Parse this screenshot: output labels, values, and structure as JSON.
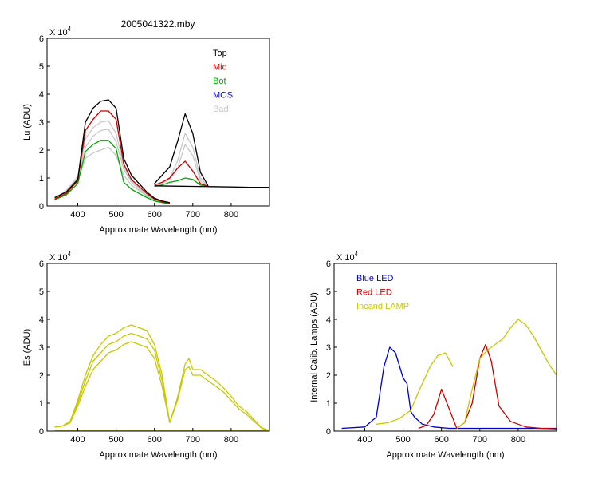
{
  "title": "2005041322.mby",
  "colors": {
    "top": "#000000",
    "mid": "#cc0000",
    "bot": "#00aa00",
    "mos": "#0000cc",
    "bad": "#c8c8c8",
    "es": "#c8c800",
    "blue_led": "#0000cc",
    "red_led": "#cc0000",
    "incand_lamp": "#c8c800"
  },
  "chart_data": [
    {
      "id": "lu",
      "type": "line",
      "xlabel": "Approximate Wavelength (nm)",
      "ylabel": "Lu (ADU)",
      "multiplier_label": "X 10",
      "multiplier_exp": "4",
      "xlim": [
        320,
        900
      ],
      "ylim": [
        0,
        6
      ],
      "xticks": [
        400,
        500,
        600,
        700,
        800
      ],
      "xtick_labels": [
        "400",
        "500",
        "600",
        "700",
        "800"
      ],
      "yticks": [
        0,
        1,
        2,
        3,
        4,
        5,
        6
      ],
      "ytick_labels": [
        "0",
        "1",
        "2",
        "3",
        "4",
        "5",
        "6"
      ],
      "legend": [
        {
          "label": "Top",
          "color": "#000000"
        },
        {
          "label": "Mid",
          "color": "#cc0000"
        },
        {
          "label": "Bot",
          "color": "#00aa00"
        },
        {
          "label": "MOS",
          "color": "#0000cc"
        },
        {
          "label": "Bad",
          "color": "#c8c8c8"
        }
      ],
      "series": [
        {
          "name": "Bad",
          "color": "#c8c8c8",
          "x": [
            340,
            370,
            400,
            420,
            440,
            460,
            480,
            500,
            520,
            540,
            560,
            580,
            600,
            620,
            640
          ],
          "y": [
            0.25,
            0.45,
            0.9,
            1.7,
            1.9,
            2.0,
            2.1,
            1.8,
            1.1,
            0.75,
            0.55,
            0.35,
            0.2,
            0.15,
            0.1
          ]
        },
        {
          "name": "Bad",
          "color": "#c8c8c8",
          "x": [
            340,
            370,
            400,
            420,
            440,
            460,
            480,
            500,
            520,
            540,
            560,
            580,
            600,
            620,
            640
          ],
          "y": [
            0.27,
            0.5,
            1.0,
            2.1,
            2.5,
            2.7,
            2.75,
            2.3,
            1.3,
            0.85,
            0.6,
            0.38,
            0.22,
            0.16,
            0.1
          ]
        },
        {
          "name": "Bad",
          "color": "#c8c8c8",
          "x": [
            340,
            370,
            400,
            420,
            440,
            460,
            480,
            500,
            520,
            540,
            560,
            580,
            600,
            620,
            640
          ],
          "y": [
            0.28,
            0.55,
            1.05,
            2.4,
            2.8,
            3.0,
            3.05,
            2.6,
            1.4,
            0.9,
            0.65,
            0.4,
            0.23,
            0.17,
            0.1
          ]
        },
        {
          "name": "Bad",
          "color": "#c8c8c8",
          "x": [
            600,
            620,
            640,
            660,
            680,
            700,
            720,
            740
          ],
          "y": [
            0.75,
            0.85,
            1.0,
            1.6,
            2.6,
            2.1,
            1.0,
            0.7
          ]
        },
        {
          "name": "Bad",
          "color": "#c8c8c8",
          "x": [
            600,
            620,
            640,
            660,
            680,
            700,
            720,
            740
          ],
          "y": [
            0.72,
            0.8,
            0.95,
            1.35,
            2.2,
            1.8,
            0.9,
            0.7
          ]
        },
        {
          "name": "Bot",
          "color": "#00aa00",
          "x": [
            340,
            370,
            400,
            420,
            440,
            460,
            480,
            500,
            520,
            540,
            560,
            580,
            600,
            620,
            640
          ],
          "y": [
            0.22,
            0.4,
            0.8,
            1.95,
            2.2,
            2.35,
            2.35,
            2.05,
            0.85,
            0.6,
            0.45,
            0.3,
            0.18,
            0.12,
            0.08
          ]
        },
        {
          "name": "Bot",
          "color": "#00aa00",
          "x": [
            600,
            620,
            640,
            660,
            680,
            700,
            720,
            740
          ],
          "y": [
            0.7,
            0.75,
            0.85,
            0.9,
            1.0,
            0.95,
            0.75,
            0.7
          ]
        },
        {
          "name": "Mid",
          "color": "#cc0000",
          "x": [
            340,
            370,
            400,
            420,
            440,
            460,
            480,
            500,
            520,
            540,
            560,
            580,
            600,
            620,
            640
          ],
          "y": [
            0.25,
            0.45,
            0.9,
            2.7,
            3.1,
            3.4,
            3.4,
            3.1,
            1.5,
            0.95,
            0.7,
            0.45,
            0.25,
            0.15,
            0.1
          ]
        },
        {
          "name": "Mid",
          "color": "#cc0000",
          "x": [
            600,
            620,
            640,
            660,
            680,
            700,
            720,
            740
          ],
          "y": [
            0.75,
            0.85,
            1.0,
            1.35,
            1.6,
            1.25,
            0.8,
            0.7
          ]
        },
        {
          "name": "Top",
          "color": "#000000",
          "x": [
            340,
            370,
            400,
            420,
            440,
            460,
            480,
            500,
            520,
            540,
            560,
            580,
            600,
            620,
            640
          ],
          "y": [
            0.3,
            0.5,
            0.95,
            3.0,
            3.5,
            3.75,
            3.8,
            3.5,
            1.7,
            1.1,
            0.8,
            0.5,
            0.28,
            0.18,
            0.12
          ]
        },
        {
          "name": "Top",
          "color": "#000000",
          "x": [
            600,
            620,
            640,
            660,
            680,
            700,
            720,
            740
          ],
          "y": [
            0.8,
            1.1,
            1.4,
            2.3,
            3.3,
            2.6,
            1.2,
            0.72
          ]
        },
        {
          "name": "Top",
          "color": "#000000",
          "x": [
            600,
            650,
            700,
            750,
            800,
            850,
            900
          ],
          "y": [
            0.72,
            0.71,
            0.7,
            0.69,
            0.68,
            0.67,
            0.67
          ]
        }
      ]
    },
    {
      "id": "es",
      "type": "line",
      "xlabel": "Approximate Wavelength (nm)",
      "ylabel": "Es (ADU)",
      "multiplier_label": "X 10",
      "multiplier_exp": "4",
      "xlim": [
        320,
        900
      ],
      "ylim": [
        0,
        6
      ],
      "xticks": [
        400,
        500,
        600,
        700,
        800
      ],
      "xtick_labels": [
        "400",
        "500",
        "600",
        "700",
        "800"
      ],
      "yticks": [
        0,
        1,
        2,
        3,
        4,
        5,
        6
      ],
      "ytick_labels": [
        "0",
        "1",
        "2",
        "3",
        "4",
        "5",
        "6"
      ],
      "series": [
        {
          "color": "#c8c800",
          "x": [
            340,
            360,
            380,
            400,
            420,
            440,
            460,
            480,
            500,
            520,
            540,
            560,
            580,
            600,
            620,
            640
          ],
          "y": [
            0.15,
            0.18,
            0.3,
            0.9,
            1.6,
            2.2,
            2.5,
            2.8,
            2.9,
            3.1,
            3.2,
            3.1,
            3.0,
            2.6,
            1.6,
            0.3
          ]
        },
        {
          "color": "#c8c800",
          "x": [
            340,
            360,
            380,
            400,
            420,
            440,
            460,
            480,
            500,
            520,
            540,
            560,
            580,
            600,
            620,
            640
          ],
          "y": [
            0.15,
            0.18,
            0.32,
            1.0,
            1.8,
            2.5,
            2.8,
            3.1,
            3.2,
            3.4,
            3.5,
            3.4,
            3.3,
            2.9,
            1.8,
            0.3
          ]
        },
        {
          "color": "#c8c800",
          "x": [
            340,
            360,
            380,
            400,
            420,
            440,
            460,
            480,
            500,
            520,
            540,
            560,
            580,
            600,
            620,
            640
          ],
          "y": [
            0.15,
            0.18,
            0.35,
            1.1,
            2.0,
            2.7,
            3.1,
            3.4,
            3.5,
            3.7,
            3.8,
            3.7,
            3.6,
            3.1,
            2.0,
            0.3
          ]
        },
        {
          "color": "#c8c800",
          "x": [
            640,
            660,
            680,
            690,
            700,
            720,
            740,
            760,
            780,
            800,
            820,
            840,
            860,
            880,
            900
          ],
          "y": [
            0.3,
            1.1,
            2.2,
            2.3,
            2.0,
            2.0,
            1.8,
            1.6,
            1.4,
            1.1,
            0.8,
            0.6,
            0.35,
            0.1,
            0.02
          ]
        },
        {
          "color": "#c8c800",
          "x": [
            640,
            660,
            680,
            690,
            700,
            720,
            740,
            760,
            780,
            800,
            820,
            840,
            860,
            880,
            900
          ],
          "y": [
            0.3,
            1.2,
            2.4,
            2.6,
            2.2,
            2.2,
            2.0,
            1.8,
            1.55,
            1.25,
            0.9,
            0.7,
            0.4,
            0.12,
            0.02
          ]
        },
        {
          "color": "#c8c800",
          "x": [
            340,
            500,
            640,
            780,
            900
          ],
          "y": [
            0.02,
            0.02,
            0.02,
            0.02,
            0.02
          ]
        }
      ]
    },
    {
      "id": "calib",
      "type": "line",
      "xlabel": "Approximate Wavelength (nm)",
      "ylabel": "Internal Calib. Lamps (ADU)",
      "multiplier_label": "X 10",
      "multiplier_exp": "4",
      "xlim": [
        320,
        900
      ],
      "ylim": [
        0,
        6
      ],
      "xticks": [
        400,
        500,
        600,
        700,
        800
      ],
      "xtick_labels": [
        "400",
        "500",
        "600",
        "700",
        "800"
      ],
      "yticks": [
        0,
        1,
        2,
        3,
        4,
        5,
        6
      ],
      "ytick_labels": [
        "0",
        "1",
        "2",
        "3",
        "4",
        "5",
        "6"
      ],
      "legend": [
        {
          "label": "Blue LED",
          "color": "#0000cc"
        },
        {
          "label": "Red LED",
          "color": "#cc0000"
        },
        {
          "label": "Incand LAMP",
          "color": "#c8c800"
        }
      ],
      "series": [
        {
          "name": "Blue LED",
          "color": "#0000cc",
          "x": [
            340,
            400,
            430,
            450,
            465,
            480,
            500,
            510,
            520,
            530,
            550,
            580,
            620,
            700,
            800,
            900
          ],
          "y": [
            0.1,
            0.15,
            0.5,
            2.3,
            3.0,
            2.8,
            1.9,
            1.7,
            0.7,
            0.5,
            0.25,
            0.15,
            0.1,
            0.1,
            0.1,
            0.1
          ]
        },
        {
          "name": "Red LED",
          "color": "#cc0000",
          "x": [
            540,
            560,
            580,
            600,
            640,
            660,
            680,
            700,
            715,
            730,
            750,
            780,
            820,
            860,
            900
          ],
          "y": [
            0.1,
            0.2,
            0.6,
            1.5,
            0.1,
            0.3,
            1.0,
            2.6,
            3.1,
            2.5,
            0.9,
            0.35,
            0.15,
            0.1,
            0.08
          ]
        },
        {
          "name": "Incand LAMP",
          "color": "#c8c800",
          "x": [
            430,
            460,
            490,
            520,
            540,
            570,
            590,
            610,
            630
          ],
          "y": [
            0.25,
            0.3,
            0.45,
            0.75,
            1.4,
            2.3,
            2.7,
            2.8,
            2.3
          ]
        },
        {
          "name": "Incand LAMP",
          "color": "#c8c800",
          "x": [
            640,
            660,
            680,
            700,
            720,
            740,
            760,
            780,
            800,
            820,
            840,
            860,
            880,
            900
          ],
          "y": [
            0.1,
            0.3,
            1.5,
            2.6,
            2.9,
            3.1,
            3.3,
            3.7,
            4.0,
            3.8,
            3.4,
            2.9,
            2.4,
            2.0
          ]
        }
      ]
    }
  ]
}
